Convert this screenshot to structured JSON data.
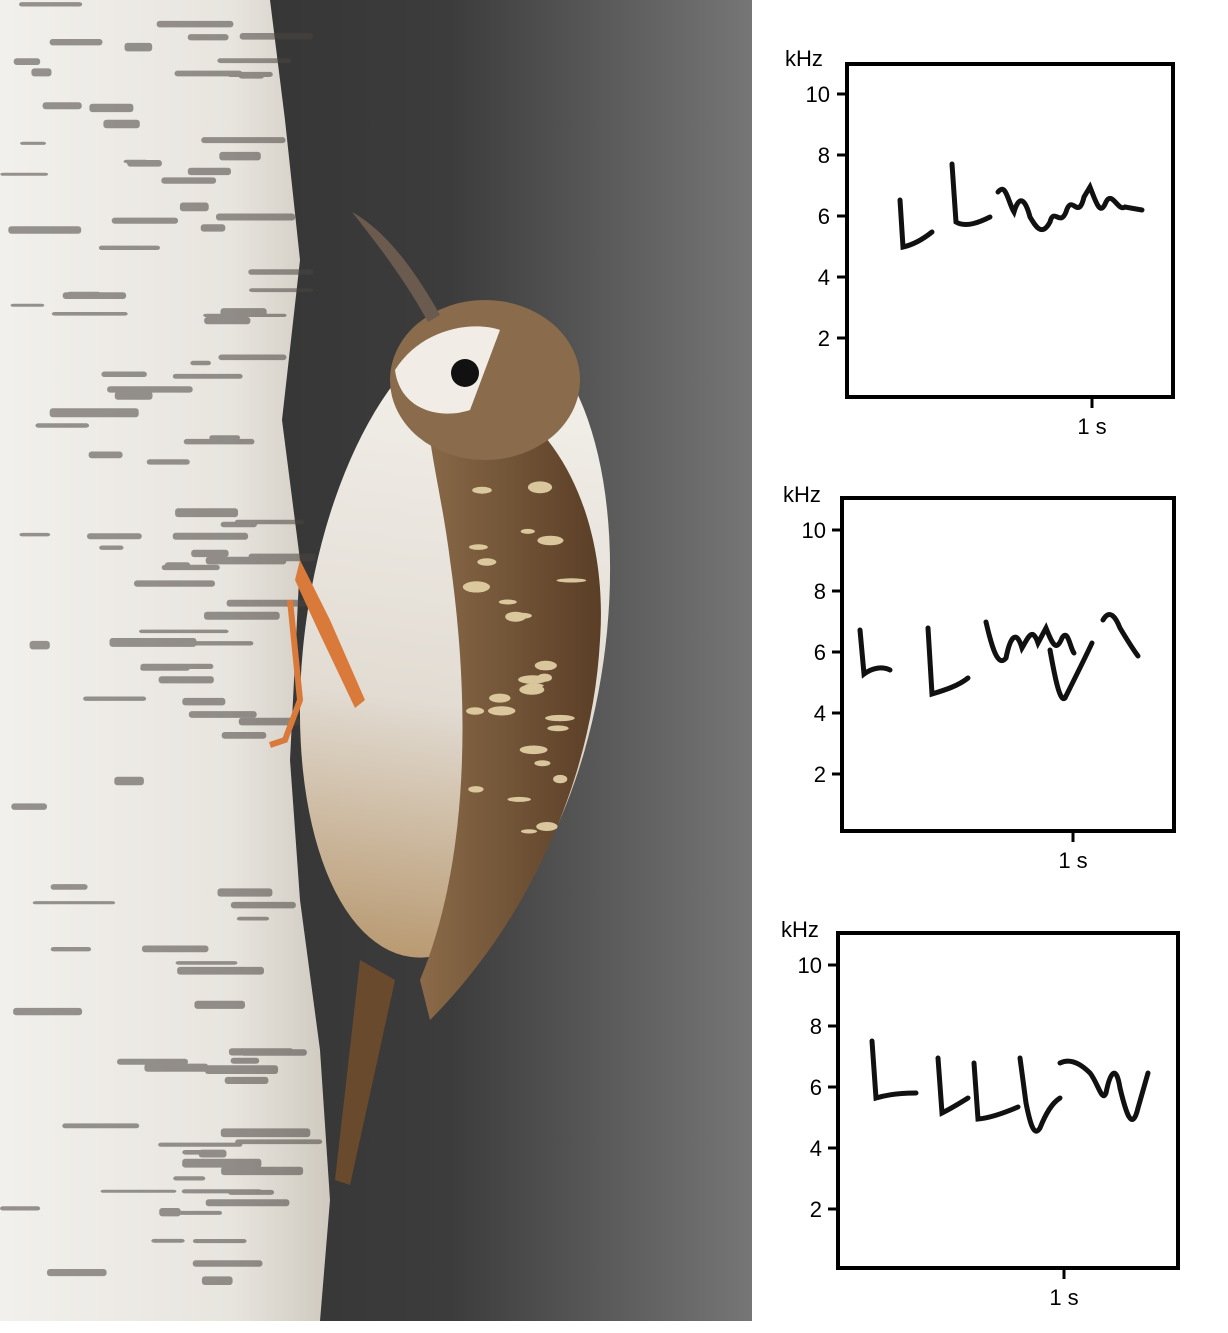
{
  "photo": {
    "subject": "treecreeper-on-birch-trunk",
    "colors": {
      "background_dark": "#3a3a3a",
      "background_light": "#6e6e6e",
      "bark": "#ece9e3",
      "bark_mark": "#4a4440",
      "bird_belly": "#ece8e2",
      "bird_back": "#7a5a3a",
      "bird_streak": "#e0cfa5",
      "leg": "#d97a3a"
    }
  },
  "spectrograms": [
    {
      "y_unit": "kHz",
      "y_ticks": [
        "10",
        "8",
        "6",
        "4",
        "2"
      ],
      "x_label": "1 s"
    },
    {
      "y_unit": "kHz",
      "y_ticks": [
        "10",
        "8",
        "6",
        "4",
        "2"
      ],
      "x_label": "1 s"
    },
    {
      "y_unit": "kHz",
      "y_ticks": [
        "10",
        "8",
        "6",
        "4",
        "2"
      ],
      "x_label": "1 s"
    }
  ]
}
